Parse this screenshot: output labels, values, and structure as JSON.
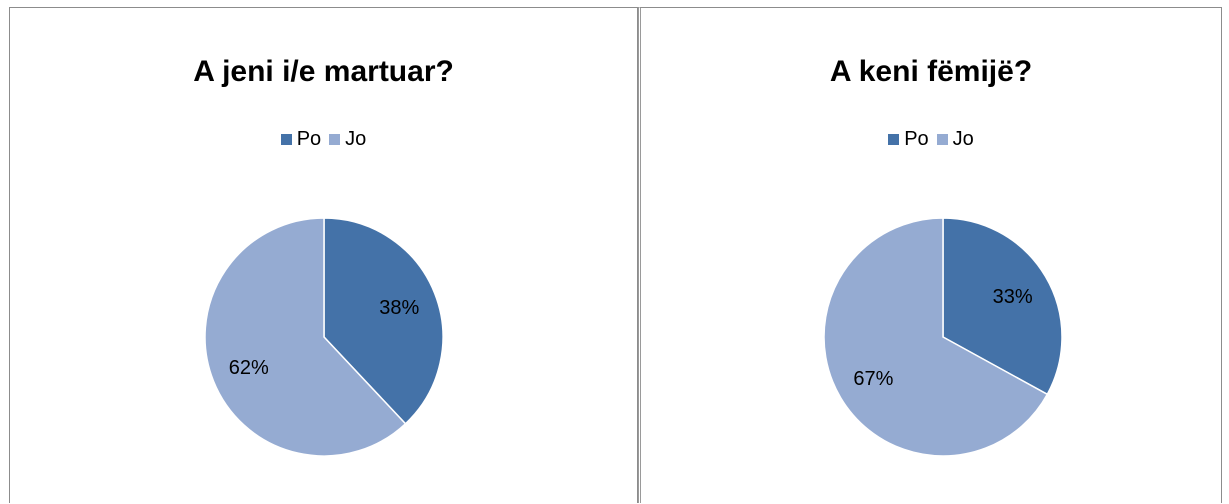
{
  "chart_data": [
    {
      "type": "pie",
      "title": "A jeni i/e martuar?",
      "legend_position": "top",
      "categories": [
        "Po",
        "Jo"
      ],
      "values": [
        38,
        62
      ],
      "labels": [
        "38%",
        "62%"
      ],
      "colors": [
        "#4472a8",
        "#95abd2"
      ]
    },
    {
      "type": "pie",
      "title": "A keni fëmijë?",
      "legend_position": "top",
      "categories": [
        "Po",
        "Jo"
      ],
      "values": [
        33,
        67
      ],
      "labels": [
        "33%",
        "67%"
      ],
      "colors": [
        "#4472a8",
        "#95abd2"
      ]
    }
  ]
}
